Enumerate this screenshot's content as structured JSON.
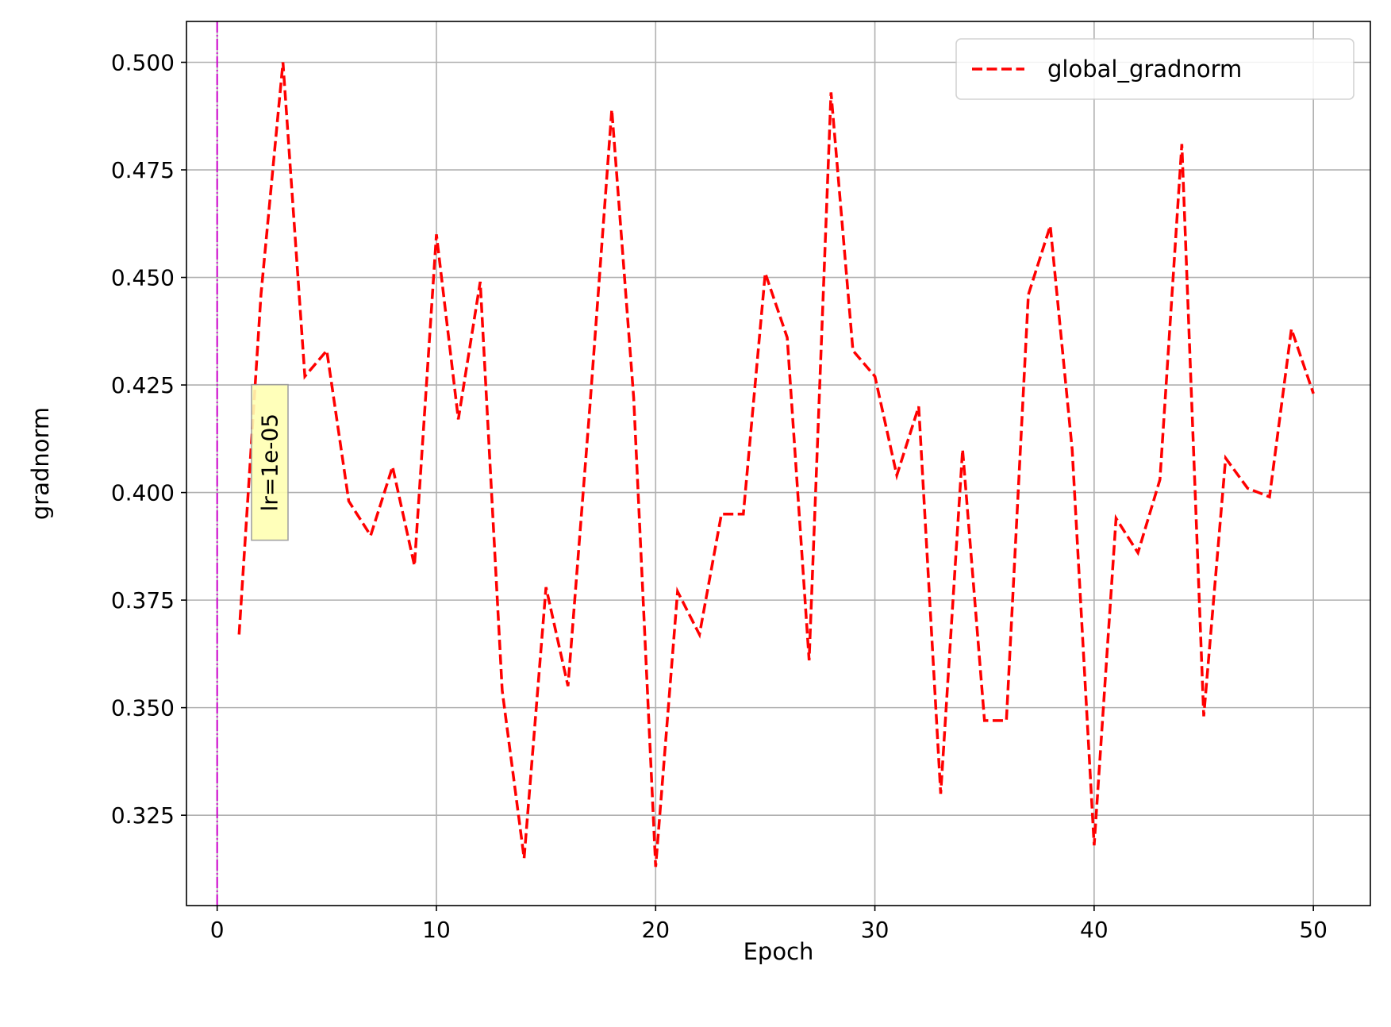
{
  "chart_data": {
    "type": "line",
    "xlabel": "Epoch",
    "ylabel": "gradnorm",
    "xlim": [
      -1.4,
      52.6
    ],
    "ylim": [
      0.304,
      0.5095
    ],
    "xticks": [
      0,
      10,
      20,
      30,
      40,
      50
    ],
    "xtick_labels": [
      "0",
      "10",
      "20",
      "30",
      "40",
      "50"
    ],
    "yticks": [
      0.325,
      0.35,
      0.375,
      0.4,
      0.425,
      0.45,
      0.475,
      0.5
    ],
    "ytick_labels": [
      "0.325",
      "0.350",
      "0.375",
      "0.400",
      "0.425",
      "0.450",
      "0.475",
      "0.500"
    ],
    "grid": true,
    "legend_position": "top-right",
    "series": [
      {
        "name": "global_gradnorm",
        "color": "#ff0000",
        "style": "dashed",
        "x": [
          1,
          2,
          3,
          4,
          5,
          6,
          7,
          8,
          9,
          10,
          11,
          12,
          13,
          14,
          15,
          16,
          17,
          18,
          19,
          20,
          21,
          22,
          23,
          24,
          25,
          26,
          27,
          28,
          29,
          30,
          31,
          32,
          33,
          34,
          35,
          36,
          37,
          38,
          39,
          40,
          41,
          42,
          43,
          44,
          45,
          46,
          47,
          48,
          49,
          50
        ],
        "y": [
          0.367,
          0.446,
          0.5,
          0.427,
          0.433,
          0.398,
          0.39,
          0.406,
          0.383,
          0.46,
          0.417,
          0.449,
          0.354,
          0.315,
          0.378,
          0.355,
          0.42,
          0.489,
          0.422,
          0.313,
          0.377,
          0.367,
          0.395,
          0.395,
          0.451,
          0.436,
          0.361,
          0.493,
          0.433,
          0.427,
          0.404,
          0.42,
          0.33,
          0.41,
          0.347,
          0.347,
          0.446,
          0.462,
          0.41,
          0.318,
          0.394,
          0.386,
          0.403,
          0.481,
          0.348,
          0.408,
          0.401,
          0.399,
          0.438,
          0.423
        ]
      }
    ],
    "vertical_line": {
      "x": 0,
      "color": "#cc00cc"
    },
    "annotation": {
      "text": "lr=1e-05",
      "x": 2.4,
      "y": 0.407,
      "rotation": -90,
      "background": "#ffffb3"
    }
  }
}
